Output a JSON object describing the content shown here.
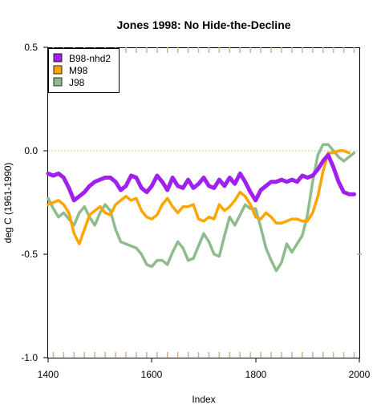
{
  "chart_data": {
    "type": "line",
    "title": "Jones 1998: No Hide-the-Decline",
    "xlabel": "Index",
    "ylabel": "deg C (1961-1990)",
    "xlim": [
      1400,
      2000
    ],
    "ylim": [
      -1.0,
      0.5
    ],
    "x_ticks": [
      "1400",
      "1600",
      "1800",
      "2000"
    ],
    "y_ticks": [
      "-1.0",
      "-0.5",
      "0.0",
      "0.5"
    ],
    "reference_line": 0.0,
    "legend_position": "top-left",
    "colors": {
      "B98-nhd2": "#a020f0",
      "M98": "#ffa500",
      "J98": "#8fbc8f"
    },
    "series": [
      {
        "name": "B98-nhd2",
        "x": [
          1400,
          1410,
          1420,
          1430,
          1440,
          1450,
          1460,
          1470,
          1480,
          1490,
          1500,
          1510,
          1520,
          1530,
          1540,
          1550,
          1560,
          1570,
          1580,
          1590,
          1600,
          1610,
          1620,
          1630,
          1640,
          1650,
          1660,
          1670,
          1680,
          1690,
          1700,
          1710,
          1720,
          1730,
          1740,
          1750,
          1760,
          1770,
          1780,
          1790,
          1800,
          1810,
          1820,
          1830,
          1840,
          1850,
          1860,
          1870,
          1880,
          1890,
          1900,
          1910,
          1920,
          1930,
          1940,
          1950,
          1960,
          1970,
          1980,
          1990
        ],
        "values": [
          -0.11,
          -0.12,
          -0.11,
          -0.13,
          -0.18,
          -0.24,
          -0.22,
          -0.2,
          -0.17,
          -0.15,
          -0.14,
          -0.13,
          -0.13,
          -0.15,
          -0.19,
          -0.17,
          -0.12,
          -0.13,
          -0.18,
          -0.2,
          -0.17,
          -0.12,
          -0.15,
          -0.19,
          -0.13,
          -0.17,
          -0.18,
          -0.14,
          -0.18,
          -0.16,
          -0.13,
          -0.17,
          -0.18,
          -0.14,
          -0.17,
          -0.13,
          -0.16,
          -0.11,
          -0.15,
          -0.2,
          -0.24,
          -0.19,
          -0.17,
          -0.15,
          -0.15,
          -0.14,
          -0.15,
          -0.14,
          -0.15,
          -0.12,
          -0.13,
          -0.12,
          -0.09,
          -0.05,
          -0.02,
          -0.08,
          -0.15,
          -0.2,
          -0.21,
          -0.21
        ]
      },
      {
        "name": "M98",
        "x": [
          1400,
          1410,
          1420,
          1430,
          1440,
          1450,
          1460,
          1470,
          1480,
          1490,
          1500,
          1510,
          1520,
          1530,
          1540,
          1550,
          1560,
          1570,
          1580,
          1590,
          1600,
          1610,
          1620,
          1630,
          1640,
          1650,
          1660,
          1670,
          1680,
          1690,
          1700,
          1710,
          1720,
          1730,
          1740,
          1750,
          1760,
          1770,
          1780,
          1790,
          1800,
          1810,
          1820,
          1830,
          1840,
          1850,
          1860,
          1870,
          1880,
          1890,
          1900,
          1910,
          1920,
          1930,
          1940,
          1950,
          1960,
          1970,
          1980
        ],
        "values": [
          -0.26,
          -0.25,
          -0.24,
          -0.26,
          -0.3,
          -0.4,
          -0.45,
          -0.38,
          -0.31,
          -0.29,
          -0.27,
          -0.3,
          -0.31,
          -0.26,
          -0.24,
          -0.22,
          -0.24,
          -0.23,
          -0.29,
          -0.32,
          -0.33,
          -0.31,
          -0.26,
          -0.23,
          -0.27,
          -0.3,
          -0.27,
          -0.27,
          -0.26,
          -0.33,
          -0.34,
          -0.32,
          -0.33,
          -0.26,
          -0.29,
          -0.27,
          -0.24,
          -0.2,
          -0.22,
          -0.26,
          -0.32,
          -0.33,
          -0.3,
          -0.32,
          -0.35,
          -0.35,
          -0.34,
          -0.33,
          -0.33,
          -0.34,
          -0.34,
          -0.3,
          -0.22,
          -0.1,
          -0.01,
          -0.01,
          0.0,
          0.0,
          -0.01
        ]
      },
      {
        "name": "J98",
        "x": [
          1400,
          1410,
          1420,
          1430,
          1440,
          1450,
          1460,
          1470,
          1480,
          1490,
          1500,
          1510,
          1520,
          1530,
          1540,
          1550,
          1560,
          1570,
          1580,
          1590,
          1600,
          1610,
          1620,
          1630,
          1640,
          1650,
          1660,
          1670,
          1680,
          1690,
          1700,
          1710,
          1720,
          1730,
          1740,
          1750,
          1760,
          1770,
          1780,
          1790,
          1800,
          1810,
          1820,
          1830,
          1840,
          1850,
          1860,
          1870,
          1880,
          1890,
          1900,
          1910,
          1920,
          1930,
          1940,
          1950,
          1960,
          1970,
          1980,
          1990
        ],
        "values": [
          -0.23,
          -0.28,
          -0.32,
          -0.3,
          -0.33,
          -0.36,
          -0.3,
          -0.27,
          -0.32,
          -0.36,
          -0.3,
          -0.26,
          -0.29,
          -0.38,
          -0.44,
          -0.45,
          -0.46,
          -0.47,
          -0.5,
          -0.55,
          -0.56,
          -0.53,
          -0.53,
          -0.55,
          -0.49,
          -0.44,
          -0.47,
          -0.53,
          -0.52,
          -0.46,
          -0.4,
          -0.44,
          -0.5,
          -0.51,
          -0.41,
          -0.32,
          -0.36,
          -0.31,
          -0.26,
          -0.28,
          -0.28,
          -0.37,
          -0.47,
          -0.53,
          -0.58,
          -0.54,
          -0.45,
          -0.49,
          -0.45,
          -0.41,
          -0.31,
          -0.15,
          -0.02,
          0.03,
          0.03,
          0.0,
          -0.03,
          -0.05,
          -0.03,
          -0.01
        ]
      }
    ]
  }
}
